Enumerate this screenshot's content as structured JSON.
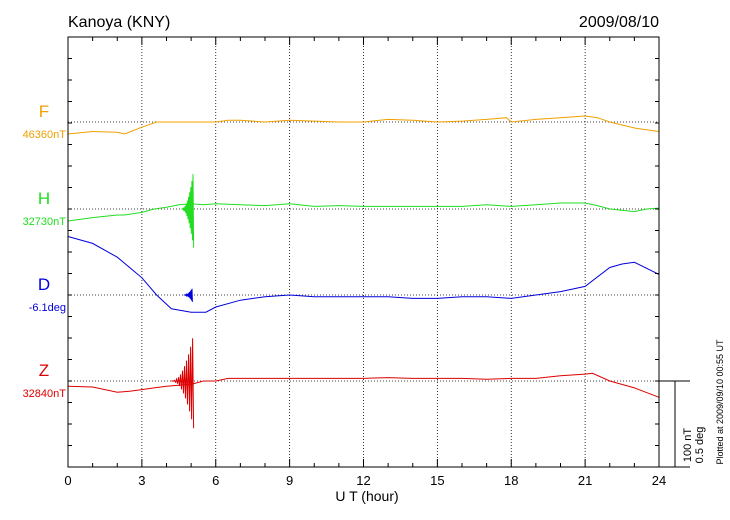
{
  "chart_data": {
    "type": "line",
    "title": "Kanoya (KNY)",
    "date": "2009/08/10",
    "xlabel": "U T (hour)",
    "xlim": [
      0,
      24
    ],
    "xticks": [
      "0",
      "3",
      "6",
      "9",
      "12",
      "15",
      "18",
      "21",
      "24"
    ],
    "grid": "dotted",
    "plotted_note": "Plotted at 2009/09/10 00:55 UT",
    "scale_labels": [
      "100 nT",
      "0.5 deg"
    ],
    "series": [
      {
        "name": "F",
        "baseline_label": "46360nT",
        "color": "#f0a000",
        "unit": "nT",
        "x": [
          0,
          1,
          2,
          2.3,
          3,
          3.6,
          4.2,
          6,
          6.5,
          7,
          8,
          9,
          10,
          11,
          12,
          13,
          14,
          15,
          16,
          17,
          17.8,
          18,
          19,
          20,
          21,
          21.5,
          22,
          23,
          24
        ],
        "y": [
          -14,
          -11,
          -12,
          -14,
          -6,
          0,
          0,
          0,
          2,
          2,
          0,
          2,
          1,
          0,
          0,
          3,
          2,
          0,
          1,
          3,
          5,
          0,
          3,
          5,
          7,
          5,
          0,
          -7,
          -11
        ]
      },
      {
        "name": "H",
        "baseline_label": "32730nT",
        "color": "#22dd22",
        "unit": "nT",
        "x": [
          0,
          1,
          2,
          2.3,
          3,
          3.5,
          4,
          4.5,
          5,
          5.5,
          6,
          7,
          8,
          9,
          10,
          11,
          12,
          13,
          14,
          15,
          16,
          17,
          18,
          19,
          20,
          21,
          21.5,
          22,
          23,
          23.5,
          24
        ],
        "y": [
          -14,
          -10,
          -7,
          -7,
          -4,
          0,
          2,
          5,
          6,
          5,
          6,
          5,
          4,
          6,
          3,
          4,
          3,
          3,
          3,
          3,
          3,
          5,
          3,
          5,
          7,
          7,
          4,
          0,
          -3,
          0,
          1
        ]
      },
      {
        "name": "D",
        "baseline_label": "-6.1deg",
        "color": "#0000dd",
        "unit": "deg",
        "x": [
          0,
          1,
          2,
          3,
          3.6,
          4.2,
          5,
          5.6,
          6,
          7,
          8,
          9,
          10,
          11,
          12,
          13,
          14,
          15,
          16,
          17,
          18,
          19,
          20,
          21,
          22,
          22.5,
          23,
          24
        ],
        "y": [
          0.34,
          0.3,
          0.22,
          0.1,
          0.0,
          -0.08,
          -0.1,
          -0.1,
          -0.07,
          -0.03,
          -0.01,
          0.0,
          -0.01,
          -0.01,
          -0.01,
          -0.01,
          -0.02,
          -0.02,
          -0.01,
          -0.01,
          -0.02,
          0.0,
          0.02,
          0.05,
          0.16,
          0.18,
          0.19,
          0.12
        ]
      },
      {
        "name": "Z",
        "baseline_label": "32840nT",
        "color": "#dd0000",
        "unit": "nT",
        "x": [
          0,
          1,
          2,
          2.5,
          3,
          3.5,
          4,
          4.5,
          5,
          5.5,
          6,
          6.5,
          7,
          8,
          9,
          10,
          11,
          12,
          13,
          14,
          15,
          16,
          17,
          18,
          19,
          20,
          21,
          21.3,
          22,
          23,
          24
        ],
        "y": [
          -6,
          -7,
          -13,
          -12,
          -10,
          -8,
          -6,
          -5,
          -4,
          0,
          0,
          3,
          3,
          3,
          3,
          3,
          3,
          3,
          4,
          3,
          3,
          3,
          2,
          3,
          3,
          6,
          8,
          9,
          0,
          -8,
          -19
        ]
      }
    ],
    "disturbance": [
      {
        "series": "H",
        "x": 4.95,
        "amplitude_nT": 90,
        "from": 4.6,
        "to": 5.1
      },
      {
        "series": "D",
        "x": 4.95,
        "amplitude_deg": 0.08,
        "from": 4.7,
        "to": 5.05
      },
      {
        "series": "Z",
        "x": 4.95,
        "amplitude_nT": 110,
        "from": 4.2,
        "to": 5.1
      }
    ]
  }
}
